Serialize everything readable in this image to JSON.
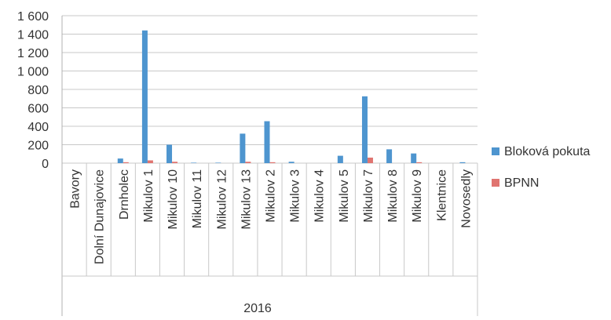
{
  "chart_data": {
    "type": "bar",
    "group_label": "2016",
    "categories": [
      "Bavory",
      "Dolní Dunajovice",
      "Drnholec",
      "Mikulov 1",
      "Mikulov 10",
      "Mikulov 11",
      "Mikulov 12",
      "Mikulov 13",
      "Mikulov 2",
      "Mikulov 3",
      "Mikulov 4",
      "Mikulov 5",
      "Mikulov 7",
      "Mikulov 8",
      "Mikulov 9",
      "Klentnice",
      "Novosedly"
    ],
    "series": [
      {
        "name": "Bloková pokuta",
        "color": "#4e95cf",
        "values": [
          0,
          0,
          50,
          1440,
          200,
          5,
          5,
          320,
          455,
          15,
          0,
          80,
          725,
          150,
          105,
          0,
          10
        ]
      },
      {
        "name": "BPNN",
        "color": "#e07470",
        "values": [
          0,
          0,
          10,
          30,
          15,
          0,
          0,
          15,
          10,
          0,
          0,
          0,
          60,
          0,
          10,
          0,
          0
        ]
      }
    ],
    "y_ticks": [
      "0",
      "200",
      "400",
      "600",
      "800",
      "1 000",
      "1 200",
      "1 400",
      "1 600"
    ],
    "ylim": [
      0,
      1600
    ],
    "grid": true,
    "legend_position": "right"
  }
}
